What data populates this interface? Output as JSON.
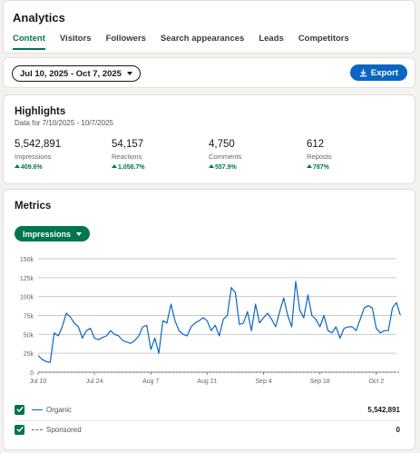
{
  "header": {
    "title": "Analytics",
    "tabs": [
      {
        "label": "Content",
        "active": true
      },
      {
        "label": "Visitors",
        "active": false
      },
      {
        "label": "Followers",
        "active": false
      },
      {
        "label": "Search appearances",
        "active": false
      },
      {
        "label": "Leads",
        "active": false
      },
      {
        "label": "Competitors",
        "active": false
      }
    ]
  },
  "filter": {
    "date_range": "Jul 10, 2025 - Oct 7, 2025",
    "export_label": "Export"
  },
  "highlights": {
    "title": "Highlights",
    "subtitle": "Data for 7/10/2025 - 10/7/2025",
    "stats": [
      {
        "value": "5,542,891",
        "label": "Impressions",
        "change": "409.6%"
      },
      {
        "value": "54,157",
        "label": "Reactions",
        "change": "1,058.7%"
      },
      {
        "value": "4,750",
        "label": "Comments",
        "change": "557.9%"
      },
      {
        "value": "612",
        "label": "Reposts",
        "change": "787%"
      }
    ]
  },
  "metrics": {
    "title": "Metrics",
    "selected_metric": "Impressions"
  },
  "colors": {
    "accent_green": "#01754f",
    "brand_blue": "#0a66c2",
    "organic_line": "#0a66c2",
    "sponsored_line": "#666666"
  },
  "chart_data": {
    "type": "line",
    "y_ticks": [
      "0",
      "25k",
      "50k",
      "75k",
      "100k",
      "125k",
      "150k"
    ],
    "ylim": [
      0,
      150000
    ],
    "x_tick_labels": [
      {
        "label": "Jul 10",
        "day": 0
      },
      {
        "label": "Jul 24",
        "day": 14
      },
      {
        "label": "Aug 7",
        "day": 28
      },
      {
        "label": "Aug 21",
        "day": 42
      },
      {
        "label": "Sep 4",
        "day": 56
      },
      {
        "label": "Sep 18",
        "day": 70
      },
      {
        "label": "Oct 2",
        "day": 84
      }
    ],
    "xlim": [
      0,
      89
    ],
    "series": [
      {
        "name": "Organic",
        "total": "5,542,891",
        "checked": true,
        "style": "solid",
        "values": [
          22000,
          17000,
          14000,
          13000,
          52000,
          48000,
          60000,
          78000,
          73000,
          65000,
          60000,
          45000,
          55000,
          58000,
          45000,
          43000,
          46000,
          48000,
          55000,
          50000,
          48000,
          42000,
          40000,
          38000,
          42000,
          48000,
          60000,
          62000,
          30000,
          45000,
          25000,
          68000,
          65000,
          90000,
          68000,
          55000,
          50000,
          48000,
          60000,
          65000,
          68000,
          72000,
          68000,
          55000,
          62000,
          48000,
          70000,
          75000,
          112000,
          105000,
          63000,
          65000,
          80000,
          55000,
          90000,
          65000,
          72000,
          78000,
          70000,
          60000,
          80000,
          98000,
          75000,
          60000,
          120000,
          82000,
          72000,
          102000,
          75000,
          70000,
          60000,
          75000,
          55000,
          52000,
          60000,
          45000,
          58000,
          60000,
          60000,
          55000,
          70000,
          85000,
          88000,
          85000,
          58000,
          52000,
          55000,
          55000,
          85000,
          92000,
          75000
        ]
      },
      {
        "name": "Sponsored",
        "total": "0",
        "checked": true,
        "style": "dashed",
        "values": [
          0,
          0,
          0,
          0,
          0,
          0,
          0,
          0,
          0,
          0,
          0,
          0,
          0,
          0,
          0,
          0,
          0,
          0,
          0,
          0,
          0,
          0,
          0,
          0,
          0,
          0,
          0,
          0,
          0,
          0,
          0,
          0,
          0,
          0,
          0,
          0,
          0,
          0,
          0,
          0,
          0,
          0,
          0,
          0,
          0,
          0,
          0,
          0,
          0,
          0,
          0,
          0,
          0,
          0,
          0,
          0,
          0,
          0,
          0,
          0,
          0,
          0,
          0,
          0,
          0,
          0,
          0,
          0,
          0,
          0,
          0,
          0,
          0,
          0,
          0,
          0,
          0,
          0,
          0,
          0,
          0,
          0,
          0,
          0,
          0,
          0,
          0,
          0,
          0,
          0,
          0
        ]
      }
    ],
    "grid": true,
    "legend": "bottom"
  }
}
